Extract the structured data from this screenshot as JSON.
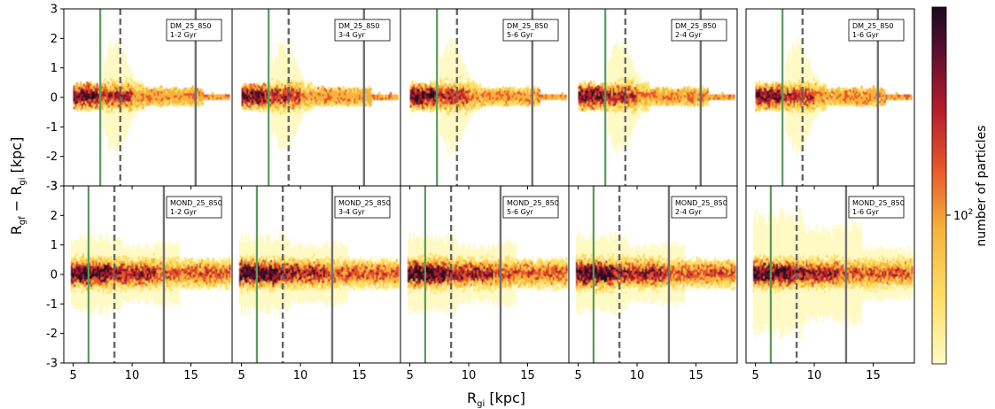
{
  "chart_data": {
    "type": "heatmap",
    "xlabel_base": "R",
    "xlabel_sub": "gi",
    "xlabel_unit": "[kpc]",
    "ylabel_text": "R",
    "ylabel_sub1": "gf",
    "ylabel_minus": " − ",
    "ylabel_sub2": "gi",
    "ylabel_unit": "[kpc]",
    "xlim": [
      4.2,
      18.5
    ],
    "ylim": [
      -3,
      3
    ],
    "xticks": [
      5,
      10,
      15
    ],
    "yticks": [
      -3,
      -2,
      -1,
      0,
      1,
      2,
      3
    ],
    "colorbar": {
      "label": "number of particles",
      "tick_base": "10",
      "tick_exp": "2",
      "tick_value": 100,
      "scale": "log"
    },
    "colors": {
      "green_line": "#5a9a5a",
      "dashed_line": "#666666",
      "solid_line": "#707070",
      "colormap": [
        "#fff9c4",
        "#ffe066",
        "#f6b23a",
        "#e8552a",
        "#b31b2c",
        "#5a0f2e",
        "#1a0a1f"
      ]
    },
    "rows": [
      {
        "model": "DM",
        "lines": {
          "green": 7.3,
          "dashed": 9.0,
          "solid": 15.4
        },
        "panels": [
          {
            "line1": "DM_25_850",
            "line2": "1-2 Gyr"
          },
          {
            "line1": "DM_25_850",
            "line2": "3-4 Gyr"
          },
          {
            "line1": "DM_25_850",
            "line2": "5-6 Gyr"
          },
          {
            "line1": "DM_25_850",
            "line2": "2-4 Gyr"
          },
          {
            "line1": "DM_25_850",
            "line2": "1-6 Gyr"
          }
        ]
      },
      {
        "model": "MOND",
        "lines": {
          "green": 6.3,
          "dashed": 8.5,
          "solid": 12.7
        },
        "panels": [
          {
            "line1": "MOND_25_850",
            "line2": "1-2 Gyr"
          },
          {
            "line1": "MOND_25_850",
            "line2": "3-4 Gyr"
          },
          {
            "line1": "MOND_25_850",
            "line2": "5-6 Gyr"
          },
          {
            "line1": "MOND_25_850",
            "line2": "2-4 Gyr"
          },
          {
            "line1": "MOND_25_850",
            "line2": "1-6 Gyr"
          }
        ]
      }
    ]
  }
}
